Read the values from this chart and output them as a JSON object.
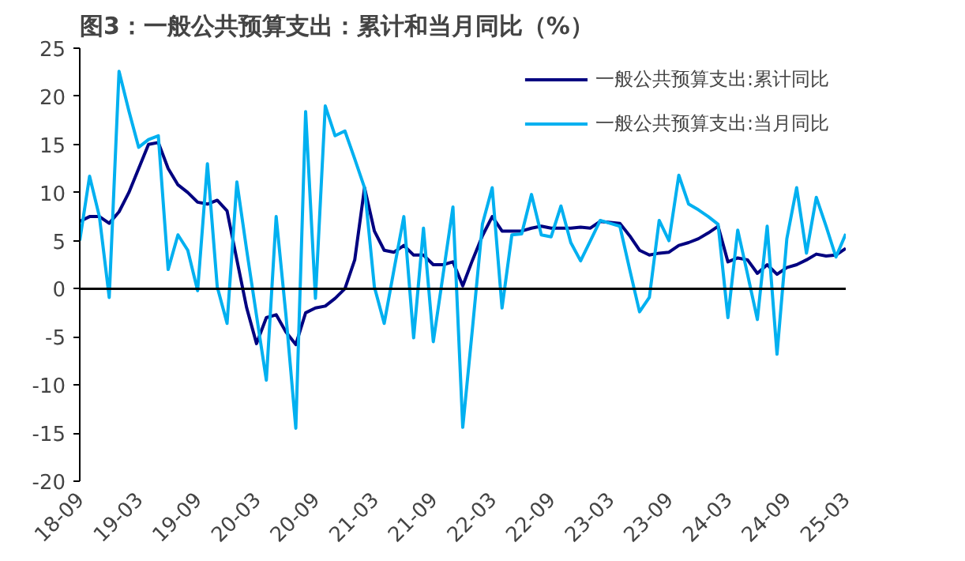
{
  "chart_data": {
    "type": "line",
    "title": "图3：一般公共预算支出：累计和当月同比（%）",
    "categories": [
      "18-09",
      null,
      null,
      null,
      null,
      null,
      "19-03",
      null,
      null,
      null,
      null,
      null,
      "19-09",
      null,
      null,
      null,
      null,
      null,
      "20-03",
      null,
      null,
      null,
      null,
      null,
      "20-09",
      null,
      null,
      null,
      null,
      null,
      "21-03",
      null,
      null,
      null,
      null,
      null,
      "21-09",
      null,
      null,
      null,
      null,
      null,
      "22-03",
      null,
      null,
      null,
      null,
      null,
      "22-09",
      null,
      null,
      null,
      null,
      null,
      "23-03",
      null,
      null,
      null,
      null,
      null,
      "23-09",
      null,
      null,
      null,
      null,
      null,
      "24-03",
      null,
      null,
      null,
      null,
      null,
      "24-09",
      null,
      null,
      null,
      null,
      null,
      "25-03"
    ],
    "series": [
      {
        "name": "一般公共预算支出:累计同比",
        "color": "#000080",
        "values": [
          7.0,
          7.5,
          7.5,
          6.8,
          8.0,
          10.0,
          12.5,
          15.0,
          15.2,
          12.5,
          10.8,
          10.0,
          9.0,
          8.8,
          9.2,
          8.1,
          3.0,
          -2.0,
          -5.7,
          -3.0,
          -2.7,
          -4.5,
          -5.8,
          -2.5,
          -2.0,
          -1.8,
          -1.0,
          0.0,
          3.0,
          10.5,
          6.0,
          4.0,
          3.8,
          4.5,
          3.5,
          3.5,
          2.5,
          2.5,
          2.8,
          0.3,
          3.0,
          5.5,
          7.5,
          6.0,
          6.0,
          6.0,
          6.3,
          6.5,
          6.3,
          6.3,
          6.3,
          6.4,
          6.3,
          7.0,
          6.9,
          6.8,
          5.5,
          4.0,
          3.5,
          3.7,
          3.8,
          4.5,
          4.8,
          5.2,
          5.8,
          6.5,
          2.8,
          3.2,
          3.0,
          1.6,
          2.5,
          1.5,
          2.2,
          2.5,
          3.0,
          3.6,
          3.4,
          3.5,
          4.2
        ]
      },
      {
        "name": "一般公共预算支出:当月同比",
        "color": "#00b0f0",
        "values": [
          5.0,
          11.7,
          7.5,
          -0.9,
          22.6,
          18.5,
          14.7,
          15.5,
          15.9,
          2.0,
          5.6,
          4.0,
          -0.2,
          13.0,
          0.2,
          -3.6,
          11.1,
          4.0,
          -2.8,
          -9.5,
          7.5,
          -2.8,
          -14.5,
          18.4,
          -1.0,
          19.0,
          15.9,
          16.4,
          13.5,
          10.5,
          0.2,
          -3.6,
          2.0,
          7.5,
          -5.1,
          6.3,
          -5.5,
          1.5,
          8.5,
          -14.4,
          -4.0,
          6.7,
          10.5,
          -2.0,
          5.6,
          5.7,
          9.8,
          5.6,
          5.4,
          8.6,
          4.8,
          2.9,
          5.0,
          7.1,
          6.8,
          6.5,
          2.0,
          -2.4,
          -0.9,
          7.1,
          5.0,
          11.8,
          8.8,
          8.2,
          7.5,
          6.7,
          -3.0,
          6.1,
          1.5,
          -3.2,
          6.5,
          -6.8,
          5.2,
          10.5,
          3.7,
          9.5,
          6.5,
          3.3,
          5.7
        ]
      }
    ],
    "ylim": [
      -20,
      25
    ],
    "yticks": [
      -20,
      -15,
      -10,
      -5,
      0,
      5,
      10,
      15,
      20,
      25
    ],
    "ref_lines": [
      {
        "axis": "y",
        "value": 0,
        "color": "#000000"
      }
    ],
    "legend": "top right",
    "grid": false,
    "marker": "none",
    "line_style": "solid"
  }
}
